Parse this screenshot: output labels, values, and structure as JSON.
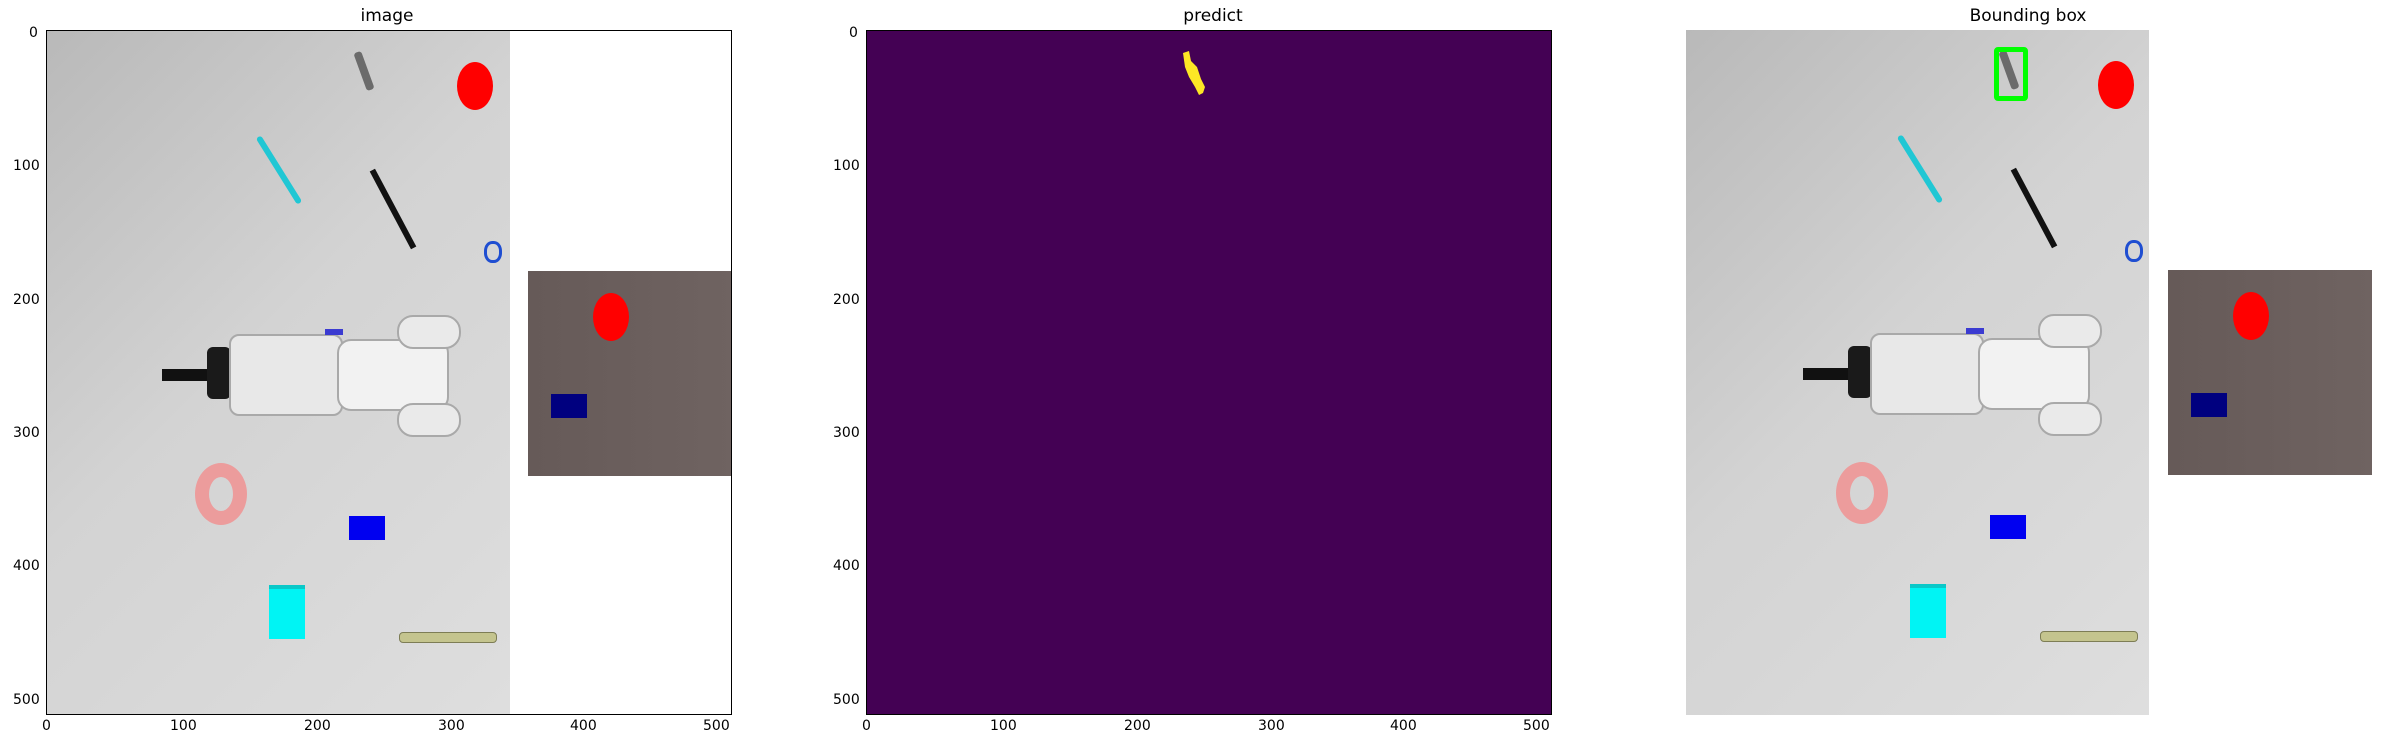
{
  "panels": [
    {
      "title": "image"
    },
    {
      "title": "predict"
    },
    {
      "title": "Bounding box"
    }
  ],
  "axes": {
    "y_ticks": [
      "0",
      "100",
      "200",
      "300",
      "400",
      "500"
    ],
    "x_ticks_full": [
      "0",
      "100",
      "200",
      "300",
      "400",
      "500"
    ],
    "x_ticks_bbox": []
  },
  "colors": {
    "mask_background": "#440154",
    "mask_foreground": "#fde725",
    "bbox": "#00ff00"
  },
  "icons": [
    "wrench-icon",
    "screwdriver-icon",
    "robot-arm-icon",
    "disk-icon",
    "cube-icon",
    "nut-icon"
  ]
}
